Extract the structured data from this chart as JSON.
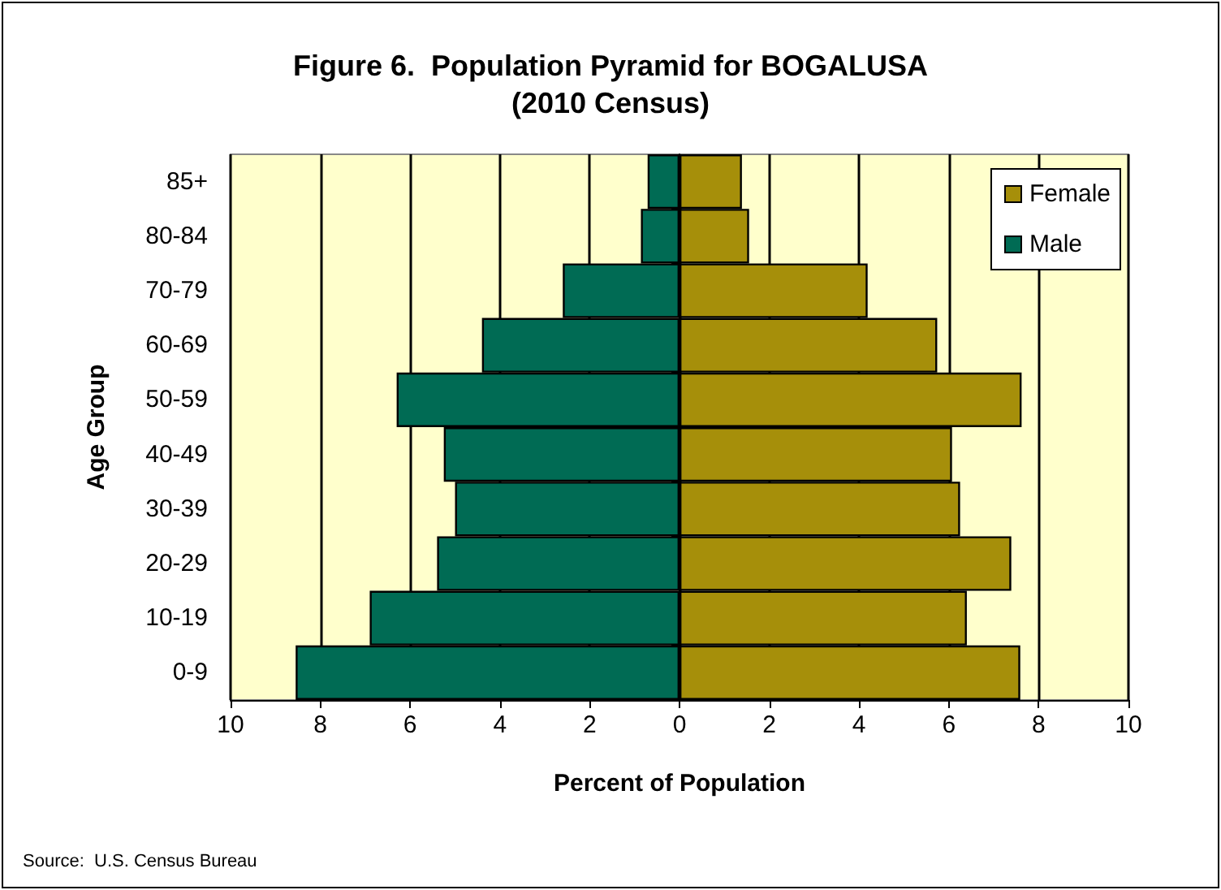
{
  "chart_data": {
    "type": "bar",
    "orientation": "horizontal",
    "title": "Figure 6.  Population Pyramid for BOGALUSA\n(2010 Census)",
    "xlabel": "Percent of Population",
    "ylabel": "Age Group",
    "categories": [
      "85+",
      "80-84",
      "70-79",
      "60-69",
      "50-59",
      "40-49",
      "30-39",
      "20-29",
      "10-19",
      "0-9"
    ],
    "series": [
      {
        "name": "Female",
        "color": "#a68f0a",
        "values": [
          1.39,
          1.55,
          4.19,
          5.74,
          7.62,
          6.07,
          6.25,
          7.39,
          6.4,
          7.59
        ]
      },
      {
        "name": "Male",
        "color": "#006b54",
        "values": [
          -0.71,
          -0.86,
          -2.6,
          -4.4,
          -6.3,
          -5.25,
          -5.0,
          -5.4,
          -6.9,
          -8.55
        ]
      }
    ],
    "xlim": [
      -10,
      10
    ],
    "xticks": [
      {
        "value": -10,
        "label": "10"
      },
      {
        "value": -8,
        "label": "8"
      },
      {
        "value": -6,
        "label": "6"
      },
      {
        "value": -4,
        "label": "4"
      },
      {
        "value": -2,
        "label": "2"
      },
      0,
      2,
      4,
      6,
      8,
      10
    ],
    "stacked": true,
    "grid": "x",
    "legend": "top right",
    "annotations": [
      "Source:  U.S. Census Bureau"
    ]
  }
}
